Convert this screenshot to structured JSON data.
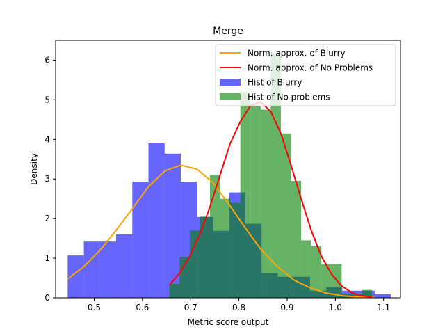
{
  "chart_data": {
    "type": "bar",
    "title": "Merge",
    "xlabel": "Metric score output",
    "ylabel": "Density",
    "xlim": [
      0.42,
      1.135
    ],
    "ylim": [
      0,
      6.5
    ],
    "xticks": [
      0.5,
      0.6,
      0.7,
      0.8,
      0.9,
      1.0,
      1.1
    ],
    "xtick_labels": [
      "0.5",
      "0.6",
      "0.7",
      "0.8",
      "0.9",
      "1.0",
      "1.1"
    ],
    "yticks": [
      0,
      1,
      2,
      3,
      4,
      5,
      6
    ],
    "ytick_labels": [
      "0",
      "1",
      "2",
      "3",
      "4",
      "5",
      "6"
    ],
    "grid": false,
    "legend_position": "top-right",
    "histograms": [
      {
        "name": "Hist of Blurry",
        "color": "#0000ff",
        "alpha": 0.6,
        "bin_edges": [
          0.445,
          0.4785,
          0.512,
          0.5455,
          0.579,
          0.6125,
          0.646,
          0.6795,
          0.713,
          0.7465,
          0.78,
          0.8135,
          0.847,
          0.8805,
          0.914,
          0.9475,
          0.981,
          1.0145,
          1.048,
          1.0815,
          1.115
        ],
        "density": [
          1.07,
          1.42,
          1.42,
          1.6,
          2.93,
          3.9,
          3.64,
          2.93,
          2.04,
          1.69,
          2.66,
          1.87,
          0.62,
          0.53,
          0.53,
          0.18,
          0.27,
          0.18,
          0.18,
          0.09
        ]
      },
      {
        "name": "Hist of No problems",
        "color": "#008000",
        "alpha": 0.6,
        "bin_edges": [
          0.656,
          0.677,
          0.698,
          0.719,
          0.74,
          0.761,
          0.782,
          0.803,
          0.824,
          0.845,
          0.866,
          0.887,
          0.908,
          0.929,
          0.95,
          0.971,
          0.992,
          1.013,
          1.034,
          1.055,
          1.076
        ],
        "density": [
          0.35,
          1.03,
          1.7,
          2.05,
          3.1,
          2.5,
          2.4,
          5.2,
          4.85,
          4.75,
          6.2,
          4.15,
          2.95,
          1.45,
          1.3,
          0.85,
          0.85,
          0.1,
          0.1,
          0.2
        ]
      }
    ],
    "series": [
      {
        "name": "Norm. approx. of Blurry",
        "color": "#ffa500",
        "x": [
          0.445,
          0.478,
          0.512,
          0.545,
          0.579,
          0.612,
          0.646,
          0.679,
          0.713,
          0.747,
          0.78,
          0.814,
          0.847,
          0.881,
          0.914,
          0.948,
          0.981,
          1.015,
          1.048,
          1.082
        ],
        "y": [
          0.48,
          0.78,
          1.2,
          1.7,
          2.25,
          2.8,
          3.2,
          3.35,
          3.25,
          2.9,
          2.35,
          1.75,
          1.2,
          0.78,
          0.45,
          0.25,
          0.12,
          0.05,
          0.02,
          0.01
        ]
      },
      {
        "name": "Norm. approx. of No Problems",
        "color": "#ff0000",
        "x": [
          0.656,
          0.677,
          0.698,
          0.719,
          0.74,
          0.761,
          0.782,
          0.803,
          0.824,
          0.845,
          0.866,
          0.887,
          0.908,
          0.929,
          0.95,
          0.971,
          0.992,
          1.013,
          1.034,
          1.055,
          1.076
        ],
        "y": [
          0.32,
          0.62,
          1.05,
          1.6,
          2.3,
          3.1,
          3.9,
          4.45,
          4.85,
          4.95,
          4.7,
          4.15,
          3.35,
          2.5,
          1.7,
          1.05,
          0.6,
          0.3,
          0.13,
          0.05,
          0.02
        ]
      }
    ],
    "legend": [
      {
        "label": "Norm. approx. of Blurry",
        "kind": "line",
        "color": "#ffa500"
      },
      {
        "label": "Norm. approx. of No Problems",
        "kind": "line",
        "color": "#ff0000"
      },
      {
        "label": "Hist of Blurry",
        "kind": "patch",
        "color": "#0000ff"
      },
      {
        "label": "Hist of No problems",
        "kind": "patch",
        "color": "#008000"
      }
    ]
  }
}
